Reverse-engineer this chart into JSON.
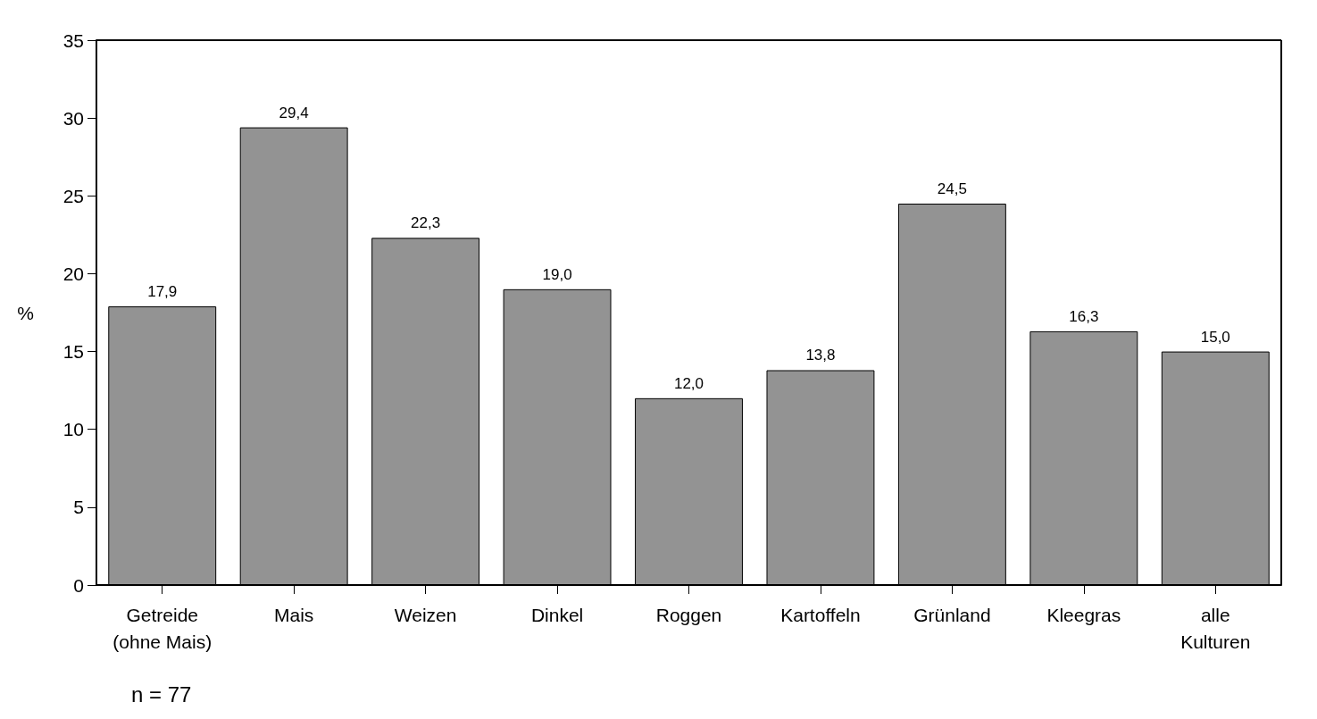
{
  "chart_data": {
    "type": "bar",
    "ylabel": "%",
    "categories": [
      "Getreide\n(ohne Mais)",
      "Mais",
      "Weizen",
      "Dinkel",
      "Roggen",
      "Kartoffeln",
      "Grünland",
      "Kleegras",
      "alle\nKulturen"
    ],
    "values": [
      17.9,
      29.4,
      22.3,
      19.0,
      12.0,
      13.8,
      24.5,
      16.3,
      15.0
    ],
    "value_labels": [
      "17,9",
      "29,4",
      "22,3",
      "19,0",
      "12,0",
      "13,8",
      "24,5",
      "16,3",
      "15,0"
    ],
    "color": "#939393",
    "ylim": [
      0,
      35
    ],
    "yticks": [
      0,
      5,
      10,
      15,
      20,
      25,
      30,
      35
    ],
    "grid": false,
    "annotations": [
      "n = 77"
    ]
  }
}
